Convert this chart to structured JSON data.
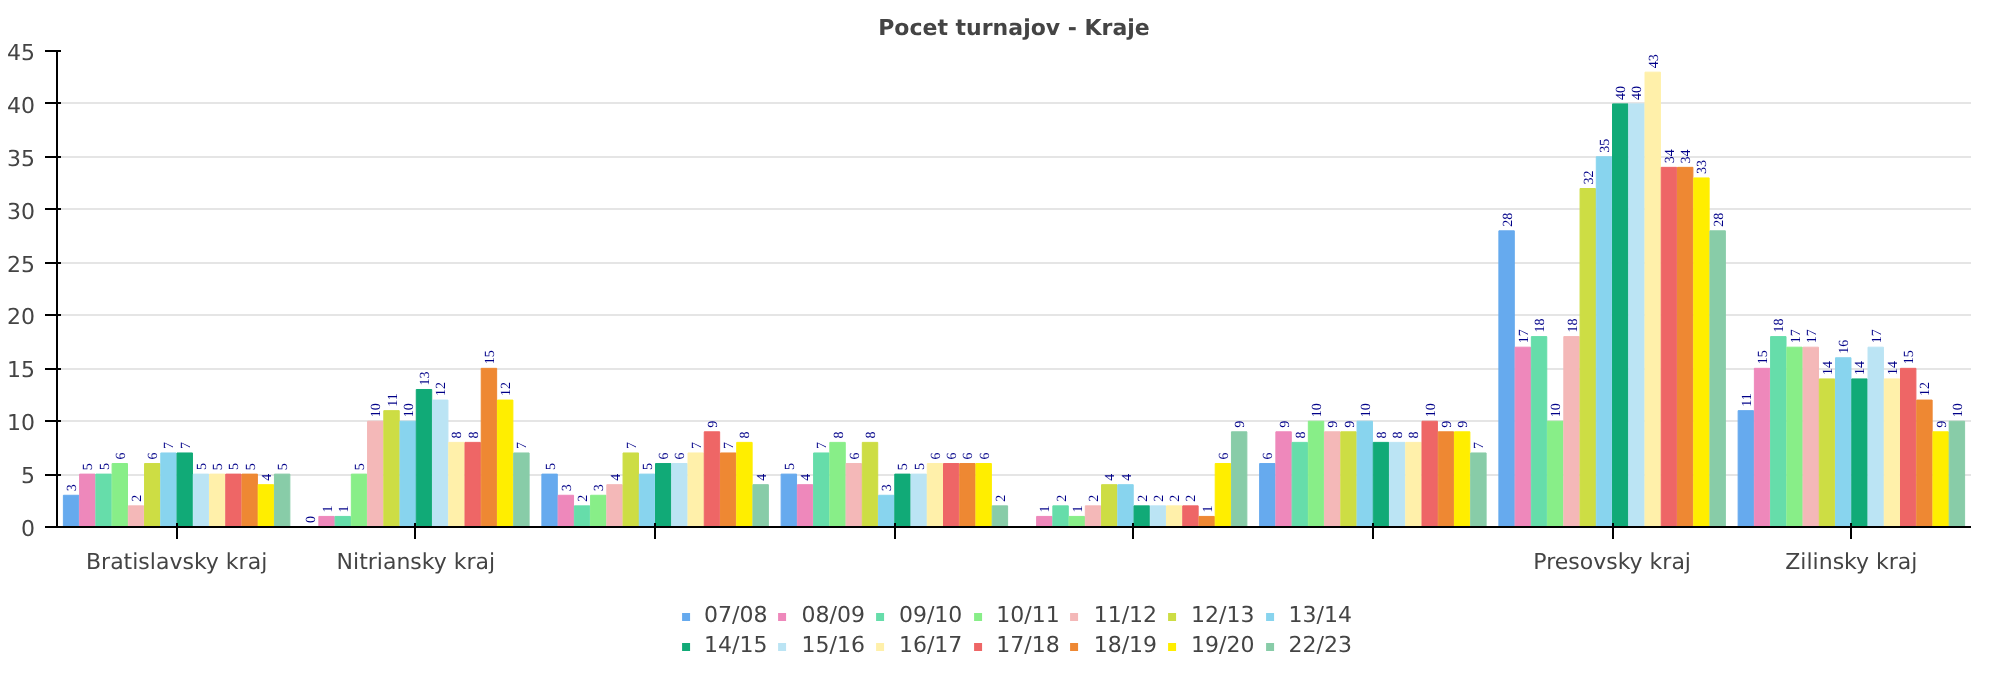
{
  "chart_data": {
    "type": "bar",
    "title": "Pocet turnajov - Kraje",
    "categories": [
      "Bratislavsky kraj",
      "Nitriansky kraj",
      null,
      null,
      null,
      null,
      "Presovsky kraj",
      "Zilinsky kraj"
    ],
    "series": [
      {
        "name": "07/08",
        "color": "#66aaee",
        "values": [
          3,
          0,
          5,
          5,
          null,
          6,
          28,
          11
        ]
      },
      {
        "name": "08/09",
        "color": "#ee88bb",
        "values": [
          5,
          1,
          3,
          4,
          1,
          9,
          17,
          15
        ]
      },
      {
        "name": "09/10",
        "color": "#66ddaa",
        "values": [
          5,
          1,
          2,
          7,
          2,
          8,
          18,
          18
        ]
      },
      {
        "name": "10/11",
        "color": "#88ee88",
        "values": [
          6,
          5,
          3,
          8,
          1,
          10,
          10,
          17
        ]
      },
      {
        "name": "11/12",
        "color": "#f4b8b8",
        "values": [
          2,
          10,
          4,
          6,
          2,
          9,
          18,
          17
        ]
      },
      {
        "name": "12/13",
        "color": "#cddd44",
        "values": [
          6,
          11,
          7,
          8,
          4,
          9,
          32,
          14
        ]
      },
      {
        "name": "13/14",
        "color": "#88d4ee",
        "values": [
          7,
          10,
          5,
          3,
          4,
          10,
          35,
          16
        ]
      },
      {
        "name": "14/15",
        "color": "#11aa77",
        "values": [
          7,
          13,
          6,
          5,
          2,
          8,
          40,
          14
        ]
      },
      {
        "name": "15/16",
        "color": "#bbe4f4",
        "values": [
          5,
          12,
          6,
          5,
          2,
          8,
          40,
          17
        ]
      },
      {
        "name": "16/17",
        "color": "#fff0aa",
        "values": [
          5,
          8,
          7,
          6,
          2,
          8,
          43,
          14
        ]
      },
      {
        "name": "17/18",
        "color": "#ee6666",
        "values": [
          5,
          8,
          9,
          6,
          2,
          10,
          34,
          15
        ]
      },
      {
        "name": "18/19",
        "color": "#ee8833",
        "values": [
          5,
          15,
          7,
          6,
          1,
          9,
          34,
          12
        ]
      },
      {
        "name": "19/20",
        "color": "#ffee00",
        "values": [
          4,
          12,
          8,
          6,
          6,
          9,
          33,
          9
        ]
      },
      {
        "name": "22/23",
        "color": "#88cca8",
        "values": [
          5,
          7,
          4,
          2,
          9,
          7,
          28,
          10
        ]
      }
    ],
    "ylim": [
      0,
      45
    ],
    "yticks": [
      0,
      5,
      10,
      15,
      20,
      25,
      30,
      35,
      40,
      45
    ],
    "grid": "y",
    "legend": "bottom",
    "data_labels": true
  }
}
